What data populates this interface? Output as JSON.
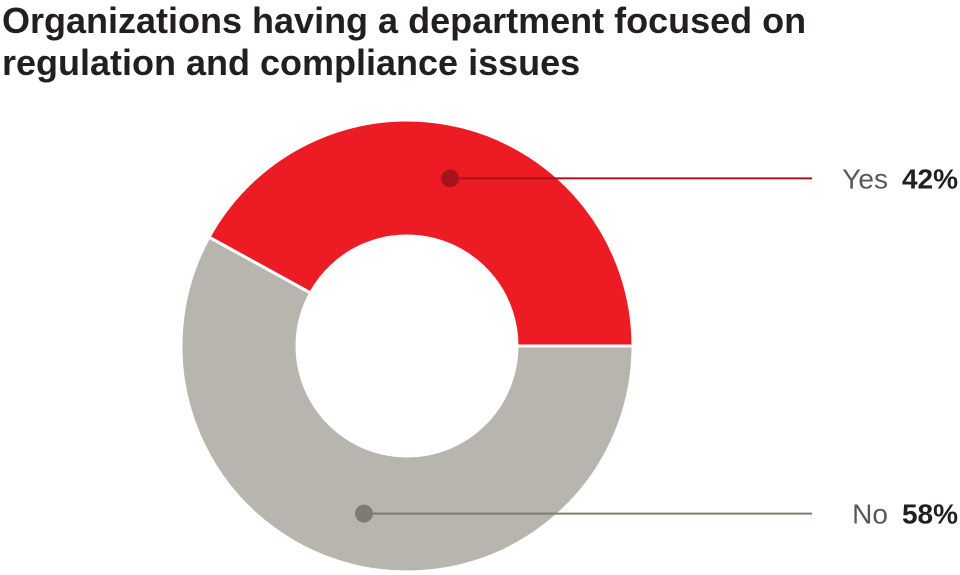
{
  "title_lines": [
    "Organizations having a department focused on",
    "regulation and compliance issues"
  ],
  "chart_data": {
    "type": "pie",
    "title": "Organizations having a department focused on regulation and compliance issues",
    "slices": [
      {
        "label": "Yes",
        "value": 42,
        "value_label": "42%",
        "color": "#ed1c24",
        "marker_color": "#a6141b"
      },
      {
        "label": "No",
        "value": 58,
        "value_label": "58%",
        "color": "#b8b4ae",
        "marker_color": "#7f7b6e"
      }
    ],
    "donut": true
  }
}
